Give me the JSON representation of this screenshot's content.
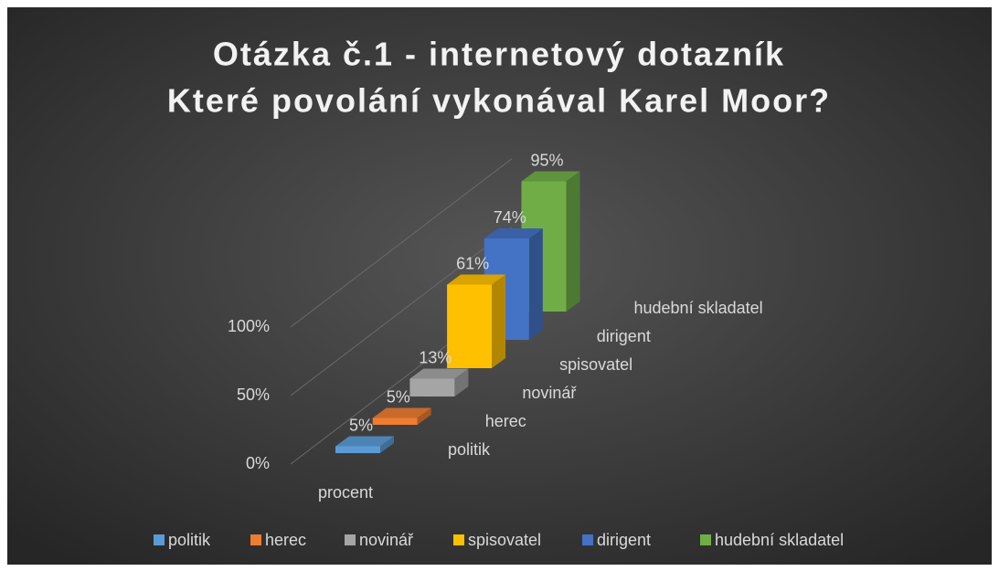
{
  "chart_data": {
    "type": "bar3d",
    "title": [
      "Otázka č.1 - internetový dotazník",
      "Které povolání vykonával Karel Moor?"
    ],
    "categories": [
      "procent"
    ],
    "series": [
      {
        "name": "politik",
        "color": "#5b9bd5",
        "values": [
          5
        ],
        "value_labels": [
          "5%"
        ]
      },
      {
        "name": "herec",
        "color": "#ed7d31",
        "values": [
          5
        ],
        "value_labels": [
          "5%"
        ]
      },
      {
        "name": "novinář",
        "color": "#a5a5a5",
        "values": [
          13
        ],
        "value_labels": [
          "13%"
        ]
      },
      {
        "name": "spisovatel",
        "color": "#ffc000",
        "values": [
          61
        ],
        "value_labels": [
          "61%"
        ]
      },
      {
        "name": "dirigent",
        "color": "#4472c4",
        "values": [
          74
        ],
        "value_labels": [
          "74%"
        ]
      },
      {
        "name": "hudební skladatel",
        "color": "#70ad47",
        "values": [
          95
        ],
        "value_labels": [
          "95%"
        ]
      }
    ],
    "ylim": [
      0,
      100
    ],
    "yticks": [
      {
        "value": 0,
        "label": "0%"
      },
      {
        "value": 50,
        "label": "50%"
      },
      {
        "value": 100,
        "label": "100%"
      }
    ],
    "grid": true,
    "legend": "bottom"
  }
}
